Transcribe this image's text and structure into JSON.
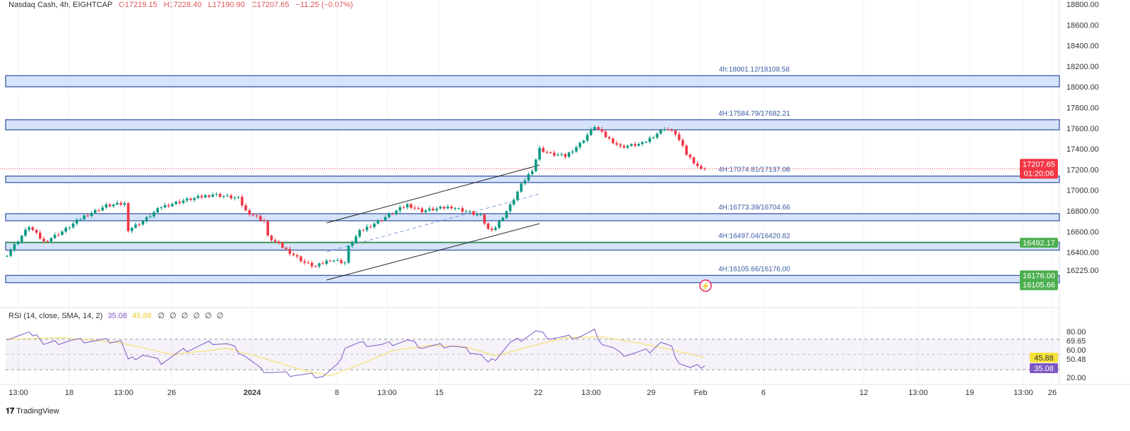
{
  "header": {
    "symbol": "Nasdaq Cash, 4h, EIGHTCAP",
    "open": "O17219.15",
    "high": "H17228.40",
    "low": "L17190.90",
    "close": "C17207.65",
    "change": "−11.25 (−0.07%)"
  },
  "rsi_legend": {
    "label": "RSI (14, close, SMA, 14, 2)",
    "rsi": "35.08",
    "sma": "45.88",
    "extras": "∅ ∅ ∅ ∅ ∅ ∅"
  },
  "branding": "TradingView",
  "colors": {
    "up": "#089981",
    "down": "#f23645",
    "zone_fill": "#d6e3fb",
    "zone_border": "#3a5aa5",
    "green_line": "#4caf50",
    "rsi": "#7e57c2",
    "rsi_sma": "#f7e27a"
  },
  "chart_data": [
    {
      "type": "candlestick",
      "title": "Nasdaq Cash, 4h, EIGHTCAP",
      "ylim": [
        16100,
        18850
      ],
      "yticks": [
        "18800.00",
        "18600.00",
        "18400.00",
        "18200.00",
        "18000.00",
        "17800.00",
        "17600.00",
        "17400.00",
        "17200.00",
        "17000.00",
        "16800.00",
        "16600.00",
        "16400.00",
        "16225.00"
      ],
      "xticks": [
        "13:00",
        "18",
        "13:00",
        "26",
        "2024",
        "8",
        "13:00",
        "15",
        "22",
        "13:00",
        "29",
        "Feb",
        "6",
        "12",
        "13:00",
        "19",
        "13:00",
        "26"
      ],
      "close_keypoints": [
        [
          0,
          16380
        ],
        [
          6,
          16650
        ],
        [
          10,
          16500
        ],
        [
          15,
          16600
        ],
        [
          21,
          16750
        ],
        [
          27,
          16850
        ],
        [
          32,
          16870
        ],
        [
          33,
          16620
        ],
        [
          37,
          16700
        ],
        [
          42,
          16840
        ],
        [
          48,
          16900
        ],
        [
          56,
          16960
        ],
        [
          63,
          16920
        ],
        [
          65,
          16800
        ],
        [
          70,
          16700
        ],
        [
          71,
          16550
        ],
        [
          77,
          16400
        ],
        [
          81,
          16300
        ],
        [
          84,
          16260
        ],
        [
          88,
          16330
        ],
        [
          92,
          16300
        ],
        [
          93,
          16450
        ],
        [
          96,
          16600
        ],
        [
          102,
          16720
        ],
        [
          109,
          16860
        ],
        [
          113,
          16800
        ],
        [
          121,
          16840
        ],
        [
          129,
          16750
        ],
        [
          131,
          16620
        ],
        [
          133,
          16640
        ],
        [
          137,
          16850
        ],
        [
          140,
          17050
        ],
        [
          143,
          17200
        ],
        [
          145,
          17400
        ],
        [
          148,
          17350
        ],
        [
          152,
          17330
        ],
        [
          156,
          17450
        ],
        [
          160,
          17620
        ],
        [
          163,
          17520
        ],
        [
          167,
          17420
        ],
        [
          173,
          17450
        ],
        [
          177,
          17550
        ],
        [
          179,
          17600
        ],
        [
          182,
          17550
        ],
        [
          185,
          17350
        ],
        [
          189,
          17200
        ],
        [
          190,
          17207.65
        ]
      ],
      "zones": [
        {
          "label": "4h:18001.12/18108.58",
          "low": 18001.12,
          "high": 18108.58
        },
        {
          "label": "4H:17584.79/17682.21",
          "low": 17584.79,
          "high": 17682.21
        },
        {
          "label": "4H:17074.81/17137.08",
          "low": 17074.81,
          "high": 17137.08
        },
        {
          "label": "4H:16773.39/16704.66",
          "low": 16704.66,
          "high": 16773.39
        },
        {
          "label": "4H:16497.04/16420.82",
          "low": 16420.82,
          "high": 16497.04
        },
        {
          "label": "4H:16105.66/16176.00",
          "low": 16105.66,
          "high": 16176.0
        }
      ],
      "channel": {
        "upper": [
          [
            87,
            16684
          ],
          [
            145,
            17244
          ]
        ],
        "lower": [
          [
            87,
            16131
          ],
          [
            145,
            16677
          ]
        ],
        "mid": [
          [
            87,
            16404
          ],
          [
            145,
            16964
          ]
        ]
      },
      "last_price": {
        "value": "17207.65",
        "countdown": "01:20:06"
      },
      "green_line": {
        "value": "16492.17"
      },
      "tags": [
        "16176.00",
        "16105.66"
      ]
    },
    {
      "type": "line",
      "title": "RSI (14, close, SMA, 14, 2)",
      "ylim": [
        15,
        85
      ],
      "bands": [
        30,
        70
      ],
      "yticks": [
        "80.00",
        "69.65",
        "60.00",
        "50.48",
        "20.00"
      ],
      "tags": {
        "sma": "45.88",
        "rsi": "35.08"
      },
      "rsi_keypoints": [
        [
          0,
          72
        ],
        [
          8,
          78
        ],
        [
          10,
          63
        ],
        [
          17,
          68
        ],
        [
          31,
          68
        ],
        [
          33,
          42
        ],
        [
          37,
          50
        ],
        [
          42,
          40
        ],
        [
          48,
          55
        ],
        [
          56,
          66
        ],
        [
          60,
          63
        ],
        [
          62,
          58
        ],
        [
          65,
          48
        ],
        [
          69,
          30
        ],
        [
          75,
          25
        ],
        [
          81,
          23
        ],
        [
          86,
          22
        ],
        [
          90,
          35
        ],
        [
          92,
          60
        ],
        [
          96,
          64
        ],
        [
          102,
          62
        ],
        [
          109,
          68
        ],
        [
          113,
          60
        ],
        [
          121,
          62
        ],
        [
          129,
          50
        ],
        [
          131,
          38
        ],
        [
          133,
          45
        ],
        [
          137,
          65
        ],
        [
          140,
          70
        ],
        [
          144,
          80
        ],
        [
          148,
          72
        ],
        [
          152,
          72
        ],
        [
          156,
          74
        ],
        [
          160,
          80
        ],
        [
          162,
          65
        ],
        [
          165,
          58
        ],
        [
          167,
          50
        ],
        [
          171,
          52
        ],
        [
          175,
          55
        ],
        [
          178,
          66
        ],
        [
          181,
          58
        ],
        [
          183,
          40
        ],
        [
          186,
          32
        ],
        [
          189,
          35
        ],
        [
          190,
          35.08
        ]
      ],
      "sma_keypoints": [
        [
          0,
          70
        ],
        [
          15,
          72
        ],
        [
          30,
          66
        ],
        [
          45,
          50
        ],
        [
          60,
          58
        ],
        [
          70,
          45
        ],
        [
          80,
          30
        ],
        [
          88,
          22
        ],
        [
          95,
          35
        ],
        [
          105,
          55
        ],
        [
          115,
          62
        ],
        [
          125,
          60
        ],
        [
          133,
          48
        ],
        [
          142,
          60
        ],
        [
          152,
          72
        ],
        [
          162,
          73
        ],
        [
          172,
          65
        ],
        [
          182,
          55
        ],
        [
          190,
          45.88
        ]
      ]
    }
  ]
}
